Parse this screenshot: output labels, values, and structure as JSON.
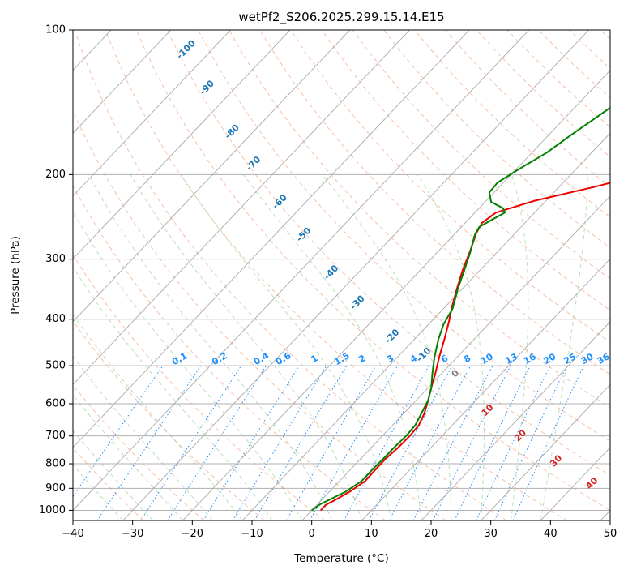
{
  "chart_data": {
    "type": "line",
    "title": "wetPf2_S206.2025.299.15.14.E15",
    "xlabel": "Temperature (°C)",
    "ylabel": "Pressure (hPa)",
    "xlim": [
      -40,
      50
    ],
    "ylim": [
      1050,
      100
    ],
    "y_scale": "log",
    "x_ticks": [
      -40,
      -30,
      -20,
      -10,
      0,
      10,
      20,
      30,
      40,
      50
    ],
    "x_tick_labels": [
      "−40",
      "−30",
      "−20",
      "−10",
      "0",
      "10",
      "20",
      "30",
      "40",
      "50"
    ],
    "y_ticks": [
      1000,
      900,
      800,
      700,
      600,
      500,
      400,
      300,
      200,
      100
    ],
    "y_tick_labels": [
      "1000",
      "900",
      "800",
      "700",
      "600",
      "500",
      "400",
      "300",
      "200",
      "100"
    ],
    "grid": true,
    "isotherm_labels": [
      {
        "text": "-100",
        "x": -21,
        "p": 110
      },
      {
        "text": "-90",
        "x": -17.5,
        "p": 132
      },
      {
        "text": "-80",
        "x": -13.3,
        "p": 163
      },
      {
        "text": "-70",
        "x": -9.7,
        "p": 190
      },
      {
        "text": "-60",
        "x": -5.3,
        "p": 228
      },
      {
        "text": "-50",
        "x": -1.3,
        "p": 267
      },
      {
        "text": "-40",
        "x": 3.3,
        "p": 320
      },
      {
        "text": "-30",
        "x": 7.7,
        "p": 370
      },
      {
        "text": "-20",
        "x": 13.5,
        "p": 435
      },
      {
        "text": "-10",
        "x": 18.8,
        "p": 475
      },
      {
        "text": "0",
        "x": 24.1,
        "p": 520
      }
    ],
    "mixing_ratio_labels": [
      {
        "text": "0.1",
        "x": -22.1
      },
      {
        "text": "0.2",
        "x": -15.4
      },
      {
        "text": "0.4",
        "x": -8.4
      },
      {
        "text": "0.6",
        "x": -4.7
      },
      {
        "text": "1",
        "x": 0.5
      },
      {
        "text": "1.5",
        "x": 5.1
      },
      {
        "text": "2",
        "x": 8.5
      },
      {
        "text": "3",
        "x": 13.2
      },
      {
        "text": "4",
        "x": 17.1
      },
      {
        "text": "6",
        "x": 22.3
      },
      {
        "text": "8",
        "x": 26.1
      },
      {
        "text": "10",
        "x": 29.4
      },
      {
        "text": "13",
        "x": 33.5
      },
      {
        "text": "16",
        "x": 36.6
      },
      {
        "text": "20",
        "x": 39.9
      },
      {
        "text": "25",
        "x": 43.3
      },
      {
        "text": "30",
        "x": 46.2
      },
      {
        "text": "36",
        "x": 48.9
      }
    ],
    "moist_adiabat_labels": [
      {
        "text": "10",
        "x": 29.5,
        "p": 620
      },
      {
        "text": "20",
        "x": 35.0,
        "p": 700
      },
      {
        "text": "30",
        "x": 41.0,
        "p": 790
      },
      {
        "text": "40",
        "x": 47.0,
        "p": 880
      }
    ],
    "series": [
      {
        "color": "#ee0000",
        "points": [
          {
            "x": 1.5,
            "p": 1000
          },
          {
            "x": 1.5,
            "p": 975
          },
          {
            "x": 2.5,
            "p": 945
          },
          {
            "x": 3.5,
            "p": 910
          },
          {
            "x": 4.3,
            "p": 870
          },
          {
            "x": 4.2,
            "p": 820
          },
          {
            "x": 4.2,
            "p": 780
          },
          {
            "x": 4.5,
            "p": 740
          },
          {
            "x": 4.6,
            "p": 700
          },
          {
            "x": 4.4,
            "p": 665
          },
          {
            "x": 3.5,
            "p": 630
          },
          {
            "x": 2.0,
            "p": 590
          },
          {
            "x": 0.5,
            "p": 555
          },
          {
            "x": -1.0,
            "p": 520
          },
          {
            "x": -3.0,
            "p": 480
          },
          {
            "x": -5.0,
            "p": 440
          },
          {
            "x": -7.0,
            "p": 405
          },
          {
            "x": -9.0,
            "p": 375
          },
          {
            "x": -11.3,
            "p": 340
          },
          {
            "x": -13.0,
            "p": 315
          },
          {
            "x": -14.6,
            "p": 290
          },
          {
            "x": -16.5,
            "p": 265
          },
          {
            "x": -17.2,
            "p": 252
          },
          {
            "x": -16.5,
            "p": 240
          },
          {
            "x": -12.0,
            "p": 227
          },
          {
            "x": -4.0,
            "p": 212
          },
          {
            "x": 2.0,
            "p": 200
          },
          {
            "x": 6.0,
            "p": 188
          },
          {
            "x": 10.0,
            "p": 172
          },
          {
            "x": 13.0,
            "p": 157
          },
          {
            "x": 16.0,
            "p": 144
          },
          {
            "x": 20.0,
            "p": 132
          },
          {
            "x": 22.5,
            "p": 122
          },
          {
            "x": 24.5,
            "p": 112
          },
          {
            "x": 27.2,
            "p": 100
          }
        ]
      },
      {
        "color": "#008000",
        "points": [
          {
            "x": 0.0,
            "p": 1000
          },
          {
            "x": 0.5,
            "p": 970
          },
          {
            "x": 1.5,
            "p": 945
          },
          {
            "x": 2.7,
            "p": 915
          },
          {
            "x": 3.7,
            "p": 870
          },
          {
            "x": 3.7,
            "p": 820
          },
          {
            "x": 3.8,
            "p": 780
          },
          {
            "x": 3.8,
            "p": 740
          },
          {
            "x": 4.0,
            "p": 700
          },
          {
            "x": 3.8,
            "p": 665
          },
          {
            "x": 3.0,
            "p": 630
          },
          {
            "x": 2.0,
            "p": 590
          },
          {
            "x": 0.5,
            "p": 555
          },
          {
            "x": -1.5,
            "p": 520
          },
          {
            "x": -3.8,
            "p": 480
          },
          {
            "x": -6.0,
            "p": 440
          },
          {
            "x": -7.5,
            "p": 410
          },
          {
            "x": -8.5,
            "p": 380
          },
          {
            "x": -10.8,
            "p": 345
          },
          {
            "x": -12.5,
            "p": 318
          },
          {
            "x": -14.5,
            "p": 290
          },
          {
            "x": -16.5,
            "p": 267
          },
          {
            "x": -17.0,
            "p": 257
          },
          {
            "x": -16.0,
            "p": 248
          },
          {
            "x": -15.0,
            "p": 240
          },
          {
            "x": -16.0,
            "p": 235
          },
          {
            "x": -19.0,
            "p": 228
          },
          {
            "x": -20.8,
            "p": 218
          },
          {
            "x": -21.0,
            "p": 208
          },
          {
            "x": -19.7,
            "p": 196
          },
          {
            "x": -17.5,
            "p": 180
          },
          {
            "x": -16.2,
            "p": 165
          },
          {
            "x": -14.0,
            "p": 145
          },
          {
            "x": -12.0,
            "p": 130
          },
          {
            "x": -9.8,
            "p": 118
          },
          {
            "x": -7.0,
            "p": 108
          },
          {
            "x": -4.5,
            "p": 100
          }
        ]
      }
    ]
  }
}
